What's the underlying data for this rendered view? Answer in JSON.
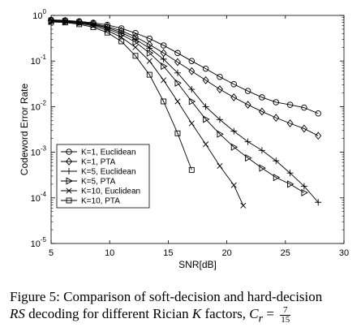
{
  "chart_data": {
    "type": "line",
    "xlabel": "SNR[dB]",
    "ylabel": "Codeword Error Rate",
    "xlim": [
      5,
      30
    ],
    "ylim_log10": [
      -5,
      0
    ],
    "yscale": "log",
    "x_ticks": [
      "5",
      "10",
      "15",
      "20",
      "25",
      "30"
    ],
    "y_ticks": [
      {
        "base": "10",
        "exp": "0"
      },
      {
        "base": "10",
        "exp": "-1"
      },
      {
        "base": "10",
        "exp": "-2"
      },
      {
        "base": "10",
        "exp": "-3"
      },
      {
        "base": "10",
        "exp": "-4"
      },
      {
        "base": "10",
        "exp": "-5"
      }
    ],
    "legend_position": "lower-left",
    "series": [
      {
        "name": "K=1, Euclidean",
        "marker": "circle",
        "x": [
          5,
          6.2,
          7.4,
          8.6,
          9.8,
          11,
          12.2,
          13.4,
          14.6,
          15.8,
          17,
          18.2,
          19.4,
          20.6,
          21.8,
          23,
          24.2,
          25.4,
          26.6,
          27.8
        ],
        "y": [
          0.8,
          0.78,
          0.74,
          0.69,
          0.62,
          0.52,
          0.41,
          0.31,
          0.22,
          0.15,
          0.1,
          0.068,
          0.045,
          0.031,
          0.022,
          0.016,
          0.0125,
          0.011,
          0.0095,
          0.0071
        ]
      },
      {
        "name": "K=1, PTA",
        "marker": "diamond",
        "x": [
          5,
          6.2,
          7.4,
          8.6,
          9.8,
          11,
          12.2,
          13.4,
          14.6,
          15.8,
          17,
          18.2,
          19.4,
          20.6,
          21.8,
          23,
          24.2,
          25.4,
          26.6,
          27.8
        ],
        "y": [
          0.78,
          0.76,
          0.72,
          0.66,
          0.57,
          0.46,
          0.34,
          0.23,
          0.15,
          0.095,
          0.06,
          0.038,
          0.024,
          0.016,
          0.011,
          0.0078,
          0.0057,
          0.0043,
          0.0033,
          0.0023
        ]
      },
      {
        "name": "K=5, Euclidean",
        "marker": "plus",
        "x": [
          5,
          6.2,
          7.4,
          8.6,
          9.8,
          11,
          12.2,
          13.4,
          14.6,
          15.8,
          17,
          18.2,
          19.4,
          20.6,
          21.8,
          23,
          24.2,
          25.4,
          26.6,
          27.8
        ],
        "y": [
          0.77,
          0.75,
          0.71,
          0.64,
          0.54,
          0.42,
          0.3,
          0.19,
          0.11,
          0.055,
          0.024,
          0.01,
          0.0052,
          0.0029,
          0.0017,
          0.0011,
          0.00065,
          0.00035,
          0.00018,
          8e-05
        ]
      },
      {
        "name": "K=5, PTA",
        "marker": "triangle-right",
        "x": [
          5,
          6.2,
          7.4,
          8.6,
          9.8,
          11,
          12.2,
          13.4,
          14.6,
          15.8,
          17,
          18.2,
          19.4,
          20.6,
          21.8,
          23,
          24.2,
          25.4,
          26.6
        ],
        "y": [
          0.75,
          0.73,
          0.69,
          0.62,
          0.51,
          0.38,
          0.26,
          0.15,
          0.077,
          0.033,
          0.013,
          0.0053,
          0.0025,
          0.0013,
          0.00075,
          0.00045,
          0.00028,
          0.0002,
          0.00013
        ]
      },
      {
        "name": "K=10, Euclidean",
        "marker": "x",
        "x": [
          5,
          6.2,
          7.4,
          8.6,
          9.8,
          11,
          12.2,
          13.4,
          14.6,
          15.8,
          17,
          18.2,
          19.4,
          20.6,
          21.4
        ],
        "y": [
          0.74,
          0.72,
          0.67,
          0.59,
          0.47,
          0.33,
          0.2,
          0.1,
          0.038,
          0.013,
          0.0043,
          0.0015,
          0.0005,
          0.00019,
          6.8e-05
        ]
      },
      {
        "name": "K=10, PTA",
        "marker": "square",
        "x": [
          5,
          6.2,
          7.4,
          8.6,
          9.8,
          11,
          12.2,
          13.4,
          14.6,
          15.8,
          17
        ],
        "y": [
          0.72,
          0.7,
          0.64,
          0.55,
          0.42,
          0.27,
          0.13,
          0.05,
          0.013,
          0.0026,
          0.00041
        ]
      }
    ]
  },
  "caption": {
    "lead": "Figure 5:  Comparison of soft-decision and hard-decision",
    "rs": "RS",
    "line2_mid": " decoding for different Rician ",
    "k": "K",
    "line2_end": " factors, ",
    "cr_symbol": "C",
    "cr_sub": "r",
    "equals": " = ",
    "frac_num": "7",
    "frac_den": "15"
  }
}
